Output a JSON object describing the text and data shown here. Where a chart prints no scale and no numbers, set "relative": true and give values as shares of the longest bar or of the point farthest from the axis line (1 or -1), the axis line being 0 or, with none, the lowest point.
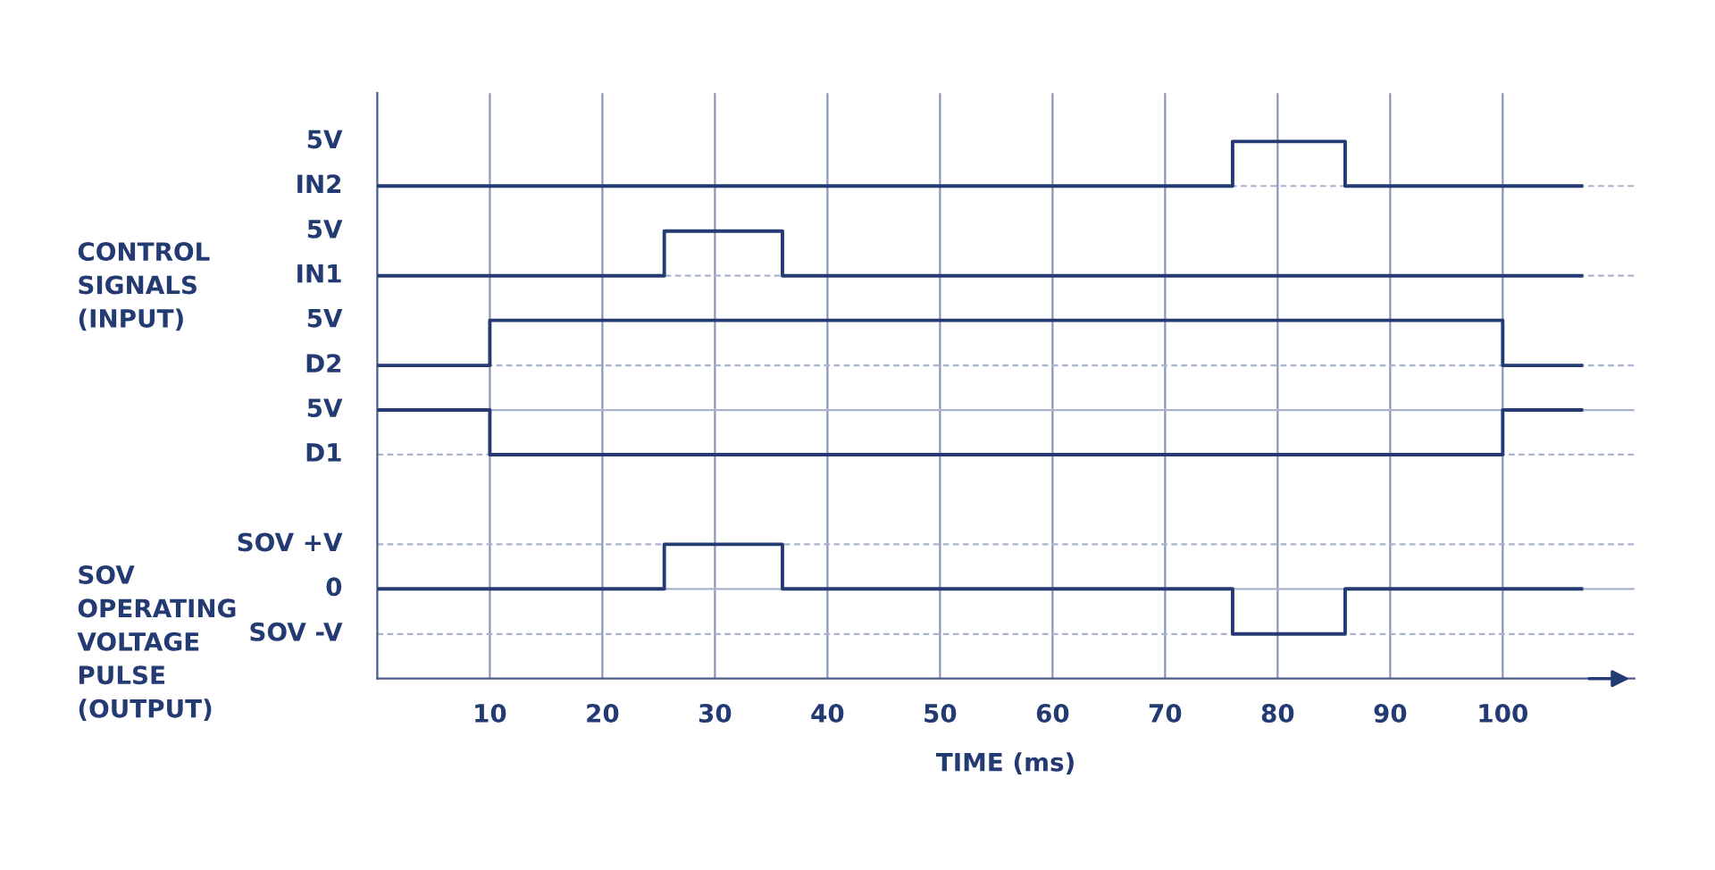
{
  "chart_data": {
    "type": "step",
    "xlabel": "TIME (ms)",
    "relative": true,
    "annotations": [
      "CONTROL SIGNALS (INPUT)",
      "SOV OPERATING VOLTAGE PULSE (OUTPUT)",
      "5V",
      "5V",
      "5V"
    ],
    "xlim": [
      0,
      111.7
    ],
    "xticks": [
      10,
      20,
      30,
      40,
      50,
      60,
      70,
      80,
      90,
      100
    ],
    "grid": "x",
    "line_style": "solid",
    "ref_lines": [
      {
        "axis": "y",
        "value": 0.917,
        "label": "IN2",
        "color": "#a9b3cc",
        "line_style": "dashed"
      },
      {
        "axis": "y",
        "value": 0.75,
        "label": "IN1",
        "color": "#a9b3cc",
        "line_style": "dashed"
      },
      {
        "axis": "y",
        "value": 0.583,
        "label": "D2",
        "color": "#a9b3cc",
        "line_style": "dashed"
      },
      {
        "axis": "y",
        "value": 0.417,
        "label": "D1",
        "color": "#a9b3cc",
        "line_style": "dashed"
      },
      {
        "axis": "y",
        "value": 0.25,
        "label": "SOV +V",
        "color": "#a9b3cc",
        "line_style": "dashed"
      },
      {
        "axis": "y",
        "value": 0.083,
        "label": "SOV -V",
        "color": "#a9b3cc",
        "line_style": "dashed"
      },
      {
        "axis": "y",
        "value": 0.5,
        "label": "5V",
        "color": "#a9b3cc",
        "line_style": "solid"
      },
      {
        "axis": "y",
        "value": 0.167,
        "label": "0",
        "color": "#a9b3cc",
        "line_style": "solid"
      }
    ],
    "series": [
      {
        "color": "#243a73",
        "x": [
          0,
          76,
          86,
          107
        ],
        "values": [
          0.917,
          1,
          0.917,
          0.917
        ]
      },
      {
        "color": "#243a73",
        "x": [
          0,
          25.5,
          36,
          107
        ],
        "values": [
          0.75,
          0.833,
          0.75,
          0.75
        ]
      },
      {
        "color": "#243a73",
        "x": [
          0,
          10,
          100,
          107
        ],
        "values": [
          0.583,
          0.667,
          0.583,
          0.583
        ]
      },
      {
        "color": "#243a73",
        "x": [
          0,
          10,
          100,
          107
        ],
        "values": [
          0.5,
          0.417,
          0.5,
          0.5
        ]
      },
      {
        "color": "#243a73",
        "x": [
          0,
          25.5,
          36,
          76,
          86,
          107
        ],
        "values": [
          0.167,
          0.25,
          0.167,
          0.083,
          0.167,
          0.167
        ]
      }
    ]
  }
}
